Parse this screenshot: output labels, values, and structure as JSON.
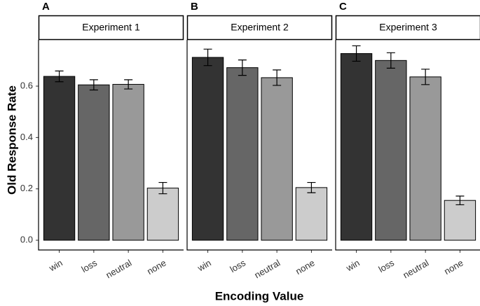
{
  "axis_labels": {
    "x": "Encoding Value",
    "y": "Old Response Rate"
  },
  "chart_data": [
    {
      "type": "bar",
      "panel_label": "A",
      "title": "Experiment 1",
      "categories": [
        "win",
        "loss",
        "neutral",
        "none"
      ],
      "values": [
        0.638,
        0.605,
        0.607,
        0.203
      ],
      "errors": [
        0.021,
        0.02,
        0.018,
        0.022
      ],
      "colors": [
        "#333333",
        "#666666",
        "#999999",
        "#cccccc"
      ],
      "ylim": [
        -0.038,
        0.78
      ],
      "yticks": [
        {
          "value": 0,
          "label": "0.0"
        },
        0.2,
        0.4,
        0.6
      ]
    },
    {
      "type": "bar",
      "panel_label": "B",
      "title": "Experiment 2",
      "categories": [
        "win",
        "loss",
        "neutral",
        "none"
      ],
      "values": [
        0.712,
        0.672,
        0.633,
        0.205
      ],
      "errors": [
        0.032,
        0.03,
        0.03,
        0.02
      ],
      "colors": [
        "#333333",
        "#666666",
        "#999999",
        "#cccccc"
      ],
      "ylim": [
        -0.038,
        0.78
      ]
    },
    {
      "type": "bar",
      "panel_label": "C",
      "title": "Experiment 3",
      "categories": [
        "win",
        "loss",
        "neutral",
        "none"
      ],
      "values": [
        0.727,
        0.7,
        0.636,
        0.155
      ],
      "errors": [
        0.03,
        0.03,
        0.03,
        0.017
      ],
      "colors": [
        "#333333",
        "#666666",
        "#999999",
        "#cccccc"
      ],
      "ylim": [
        -0.038,
        0.78
      ]
    }
  ]
}
